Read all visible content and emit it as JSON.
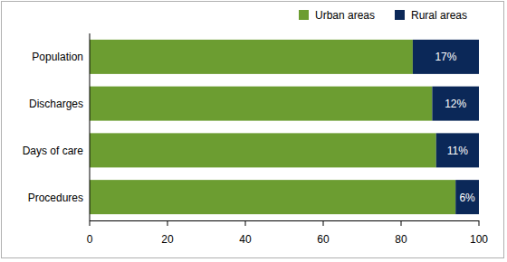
{
  "chart_data": {
    "type": "bar",
    "orientation": "horizontal",
    "stacked": true,
    "categories": [
      "Population",
      "Discharges",
      "Days of care",
      "Procedures"
    ],
    "series": [
      {
        "name": "Urban areas",
        "color": "#6c9d31",
        "values": [
          83,
          88,
          89,
          94
        ]
      },
      {
        "name": "Rural areas",
        "color": "#0b2858",
        "values": [
          17,
          12,
          11,
          6
        ],
        "data_labels": true,
        "value_labels": [
          "17%",
          "12%",
          "11%",
          "6%"
        ]
      }
    ],
    "xlim": [
      0,
      100
    ],
    "xticks": [
      0,
      20,
      40,
      60,
      80,
      100
    ],
    "grid": false,
    "legend": "upper right"
  }
}
